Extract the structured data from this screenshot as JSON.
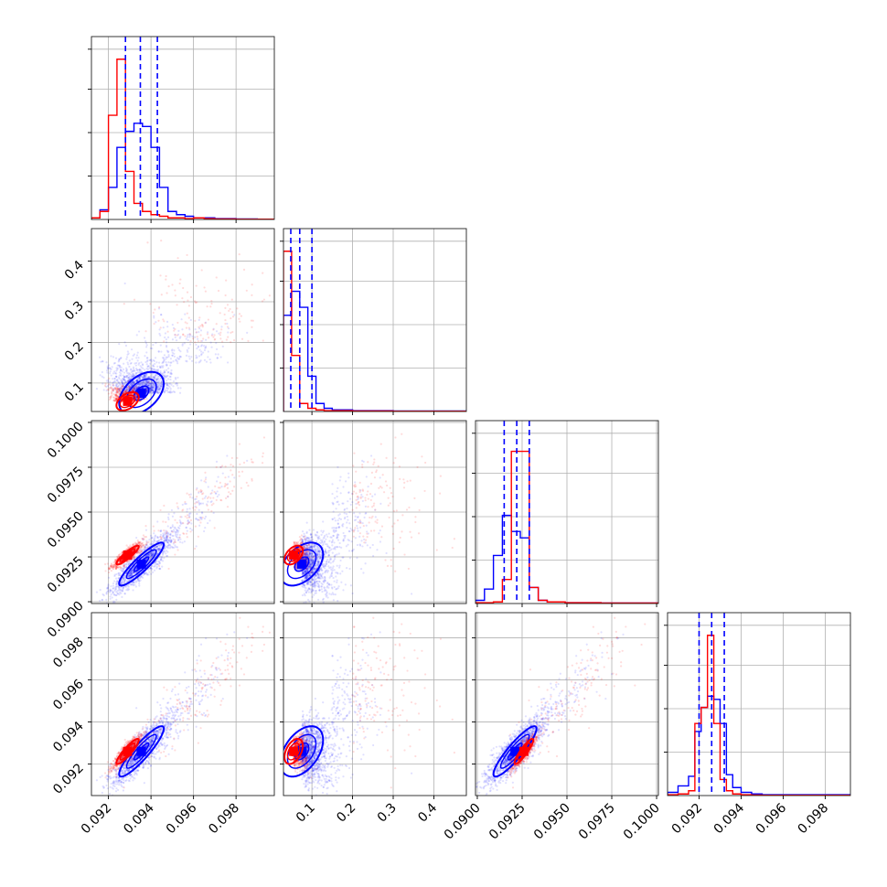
{
  "chart_data": {
    "type": "corner",
    "grid": true,
    "colors": {
      "series_a": "#0000ff",
      "series_b": "#ff0000"
    },
    "params": [
      {
        "range": [
          0.0912,
          0.0998
        ]
      },
      {
        "range": [
          0.03,
          0.48
        ]
      },
      {
        "range": [
          0.0899,
          0.1001
        ]
      },
      {
        "range": [
          0.0905,
          0.0992
        ]
      }
    ],
    "ticks": [
      [
        0.092,
        0.094,
        0.096,
        0.098
      ],
      [
        0.1,
        0.2,
        0.3,
        0.4
      ],
      [
        0.09,
        0.0925,
        0.095,
        0.0975,
        0.1
      ],
      [
        0.092,
        0.094,
        0.096,
        0.098
      ]
    ],
    "tick_labels": [
      [
        "0.092",
        "0.094",
        "0.096",
        "0.098"
      ],
      [
        "0.1",
        "0.2",
        "0.3",
        "0.4"
      ],
      [
        "0.0900",
        "0.0925",
        "0.0950",
        "0.0975",
        "0.1000"
      ],
      [
        "0.092",
        "0.094",
        "0.096",
        "0.098"
      ]
    ],
    "quantiles": [
      [
        0.0928,
        0.0935,
        0.0943
      ],
      [
        0.048,
        0.07,
        0.1
      ],
      [
        0.0915,
        0.0922,
        0.0929
      ],
      [
        0.092,
        0.0926,
        0.0932
      ]
    ],
    "histograms": [
      {
        "edges": [
          0.0912,
          0.0916,
          0.092,
          0.0924,
          0.0928,
          0.0932,
          0.0936,
          0.094,
          0.0944,
          0.0948,
          0.0952,
          0.0956,
          0.096,
          0.0965,
          0.097,
          0.098,
          0.099,
          0.0998
        ],
        "series_a": [
          0.01,
          0.06,
          0.2,
          0.45,
          0.55,
          0.6,
          0.58,
          0.45,
          0.2,
          0.05,
          0.03,
          0.02,
          0.01,
          0.01,
          0.005,
          0.003,
          0.002
        ],
        "series_b": [
          0.01,
          0.05,
          0.65,
          1.0,
          0.3,
          0.1,
          0.05,
          0.03,
          0.02,
          0.01,
          0.01,
          0.005,
          0.01,
          0.005,
          0.003,
          0.002,
          0.002
        ]
      },
      {
        "edges": [
          0.03,
          0.05,
          0.07,
          0.09,
          0.11,
          0.13,
          0.15,
          0.2,
          0.3,
          0.48
        ],
        "series_a": [
          0.6,
          0.75,
          0.65,
          0.22,
          0.05,
          0.02,
          0.01,
          0.005,
          0.003
        ],
        "series_b": [
          1.0,
          0.35,
          0.05,
          0.02,
          0.01,
          0.005,
          0.005,
          0.003,
          0.002
        ]
      },
      {
        "edges": [
          0.0899,
          0.0904,
          0.0909,
          0.0914,
          0.0919,
          0.0924,
          0.0929,
          0.0934,
          0.0939,
          0.0949,
          0.0969,
          0.1001
        ],
        "series_a": [
          0.02,
          0.09,
          0.3,
          0.55,
          0.45,
          0.41,
          0.1,
          0.02,
          0.01,
          0.005,
          0.003
        ],
        "series_b": [
          0.005,
          0.005,
          0.01,
          0.15,
          0.95,
          0.95,
          0.1,
          0.02,
          0.01,
          0.005,
          0.003
        ]
      },
      {
        "edges": [
          0.0905,
          0.091,
          0.0915,
          0.0918,
          0.0921,
          0.0924,
          0.0927,
          0.093,
          0.0933,
          0.0936,
          0.094,
          0.0945,
          0.095,
          0.0992
        ],
        "series_a": [
          0.02,
          0.06,
          0.12,
          0.4,
          0.55,
          0.62,
          0.6,
          0.45,
          0.13,
          0.05,
          0.02,
          0.01,
          0.005
        ],
        "series_b": [
          0.005,
          0.01,
          0.03,
          0.45,
          0.55,
          1.0,
          0.45,
          0.1,
          0.03,
          0.01,
          0.005,
          0.003,
          0.002
        ]
      }
    ],
    "scatter_model": {
      "series_a": {
        "mean": [
          0.09355,
          0.075,
          0.0921,
          0.0926
        ],
        "sd": [
          0.0007,
          0.035,
          0.0008,
          0.0008
        ],
        "tail_mean": [
          0.0955,
          0.15,
          0.0945,
          0.0948
        ],
        "tail_sd": [
          0.0012,
          0.06,
          0.0014,
          0.0014
        ]
      },
      "series_b": {
        "mean": [
          0.0929,
          0.055,
          0.0926,
          0.0926
        ],
        "sd": [
          0.00035,
          0.015,
          0.00035,
          0.0004
        ],
        "tail_mean": [
          0.0965,
          0.2,
          0.0955,
          0.0955
        ],
        "tail_sd": [
          0.0015,
          0.09,
          0.0018,
          0.0017
        ]
      }
    }
  }
}
